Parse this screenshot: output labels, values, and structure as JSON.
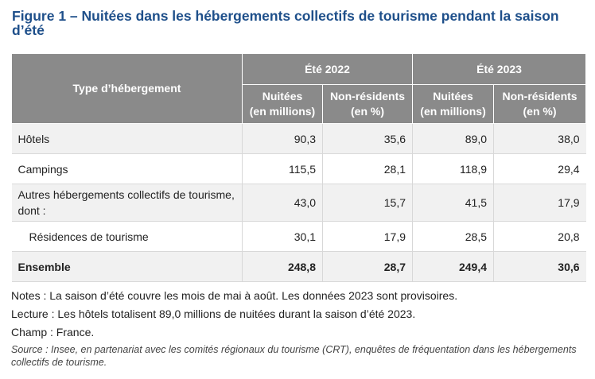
{
  "figure": {
    "title": "Figure 1 – Nuitées dans les hébergements collectifs de tourisme pendant la saison d’été"
  },
  "table": {
    "corner_header": "Type d’hébergement",
    "groups": [
      "Été 2022",
      "Été 2023"
    ],
    "subheaders": {
      "nuitees": [
        "Nuitées",
        "(en millions)"
      ],
      "non_residents": [
        "Non-résidents",
        "(en %)"
      ]
    },
    "rows": [
      {
        "label": "Hôtels",
        "values": [
          "90,3",
          "35,6",
          "89,0",
          "38,0"
        ]
      },
      {
        "label": "Campings",
        "values": [
          "115,5",
          "28,1",
          "118,9",
          "29,4"
        ]
      },
      {
        "label": "Autres hébergements collectifs de tourisme, dont :",
        "values": [
          "43,0",
          "15,7",
          "41,5",
          "17,9"
        ]
      },
      {
        "label": "Résidences de tourisme",
        "values": [
          "30,1",
          "17,9",
          "28,5",
          "20,8"
        ]
      },
      {
        "label": "Ensemble",
        "values": [
          "248,8",
          "28,7",
          "249,4",
          "30,6"
        ]
      }
    ]
  },
  "notes": {
    "notes": "Notes : La saison d’été couvre les mois de mai à août. Les données 2023 sont provisoires.",
    "lecture": "Lecture : Les hôtels totalisent 89,0 millions de nuitées durant la saison d’été 2023.",
    "champ": "Champ : France.",
    "source": "Source : Insee, en partenariat avec les comités régionaux du tourisme (CRT), enquêtes de fréquentation dans les hébergements collectifs de tourisme."
  }
}
